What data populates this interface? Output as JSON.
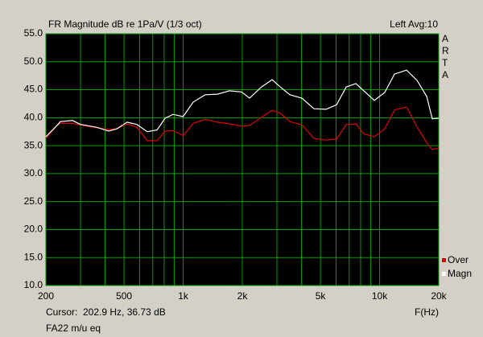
{
  "chart_data": {
    "type": "line",
    "title": "FR Magnitude dB re 1Pa/V (1/3 oct)",
    "subtitle": "Left Avg:10",
    "brand": "ARTA",
    "cursor": "Cursor:  202.9 Hz, 36.73 dB",
    "x_label": "F(Hz)",
    "footer": "FA22 m/u eq",
    "xscale": "log",
    "grid": true,
    "grid_color": "#00a000",
    "legend": "bottom-right",
    "xlim": [
      200,
      20000
    ],
    "ylim": [
      10,
      55
    ],
    "xticks": [
      200,
      500,
      {
        "value": 1000,
        "label": "1k"
      },
      {
        "value": 2000,
        "label": "2k"
      },
      {
        "value": 5000,
        "label": "5k"
      },
      {
        "value": 10000,
        "label": "10k"
      },
      {
        "value": 20000,
        "label": "20k"
      }
    ],
    "xgrid": [
      300,
      400,
      600,
      700,
      800,
      900,
      3000,
      4000,
      6000,
      7000,
      8000,
      9000
    ],
    "yticks": [
      {
        "value": 10,
        "label": "10.0"
      },
      {
        "value": 15,
        "label": "15.0"
      },
      {
        "value": 20,
        "label": "20.0"
      },
      {
        "value": 25,
        "label": "25.0"
      },
      {
        "value": 30,
        "label": "30.0"
      },
      {
        "value": 35,
        "label": "35.0"
      },
      {
        "value": 40,
        "label": "40.0"
      },
      {
        "value": 45,
        "label": "45.0"
      },
      {
        "value": 50,
        "label": "50.0"
      },
      {
        "value": 55,
        "label": "55.0"
      }
    ],
    "x": [
      200,
      226,
      237,
      273,
      300,
      362,
      418,
      459,
      519,
      581,
      656,
      736,
      809,
      889,
      1000,
      1125,
      1295,
      1493,
      1719,
      1982,
      2178,
      2507,
      2838,
      3118,
      3492,
      4022,
      4634,
      5338,
      6040,
      6764,
      7573,
      8318,
      9400,
      10620,
      11910,
      13710,
      15490,
      17370,
      18540,
      20000
    ],
    "series": [
      {
        "name": "Over",
        "color": "#e00000",
        "values": [
          36.3,
          38.5,
          39.0,
          39.0,
          38.7,
          38.2,
          37.9,
          38.0,
          38.9,
          38.3,
          35.9,
          35.9,
          37.6,
          37.7,
          36.8,
          39.0,
          39.7,
          39.2,
          38.9,
          38.5,
          38.6,
          40.1,
          41.3,
          40.8,
          39.3,
          38.7,
          36.3,
          36.0,
          36.2,
          38.8,
          38.9,
          37.1,
          36.6,
          38.0,
          41.4,
          41.9,
          38.4,
          35.5,
          34.3,
          34.6
        ]
      },
      {
        "name": "Magn",
        "color": "#ffffff",
        "values": [
          36.6,
          38.5,
          39.3,
          39.5,
          38.8,
          38.3,
          37.6,
          38.0,
          39.2,
          38.8,
          37.5,
          37.8,
          39.9,
          40.6,
          40.2,
          42.8,
          44.1,
          44.2,
          44.8,
          44.6,
          43.5,
          45.5,
          46.8,
          45.5,
          44.1,
          43.5,
          41.6,
          41.5,
          42.3,
          45.5,
          46.1,
          44.8,
          43.1,
          44.5,
          47.8,
          48.5,
          46.7,
          43.8,
          39.8,
          39.9
        ]
      }
    ]
  }
}
